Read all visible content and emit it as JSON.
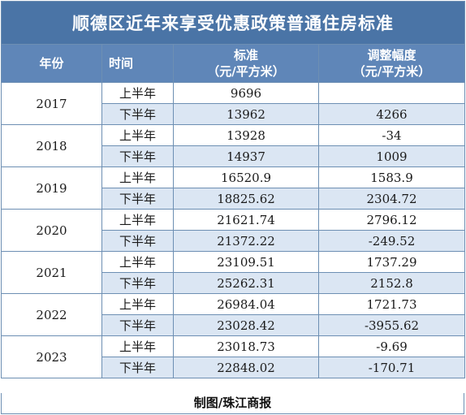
{
  "title": "顺德区近年来享受优惠政策普通住房标准",
  "headers": {
    "year": "年份",
    "time": "时间",
    "standard": "标准",
    "standard_unit": "（元/平方米）",
    "change": "调整幅度",
    "change_unit": "（元/平方米）"
  },
  "rows": [
    {
      "year": "2017",
      "h1": {
        "label": "上半年",
        "standard": "9696",
        "change": ""
      },
      "h2": {
        "label": "下半年",
        "standard": "13962",
        "change": "4266"
      }
    },
    {
      "year": "2018",
      "h1": {
        "label": "上半年",
        "standard": "13928",
        "change": "-34"
      },
      "h2": {
        "label": "下半年",
        "standard": "14937",
        "change": "1009"
      }
    },
    {
      "year": "2019",
      "h1": {
        "label": "上半年",
        "standard": "16520.9",
        "change": "1583.9"
      },
      "h2": {
        "label": "下半年",
        "standard": "18825.62",
        "change": "2304.72"
      }
    },
    {
      "year": "2020",
      "h1": {
        "label": "上半年",
        "standard": "21621.74",
        "change": "2796.12"
      },
      "h2": {
        "label": "下半年",
        "standard": "21372.22",
        "change": "-249.52"
      }
    },
    {
      "year": "2021",
      "h1": {
        "label": "上半年",
        "standard": "23109.51",
        "change": "1737.29"
      },
      "h2": {
        "label": "下半年",
        "standard": "25262.31",
        "change": "2152.8"
      }
    },
    {
      "year": "2022",
      "h1": {
        "label": "上半年",
        "standard": "26984.04",
        "change": "1721.73"
      },
      "h2": {
        "label": "下半年",
        "standard": "23028.42",
        "change": "-3955.62"
      }
    },
    {
      "year": "2023",
      "h1": {
        "label": "上半年",
        "standard": "23018.73",
        "change": "-9.69"
      },
      "h2": {
        "label": "下半年",
        "standard": "22848.02",
        "change": "-170.71"
      }
    }
  ],
  "footer": "制图/珠江商报",
  "colors": {
    "title_bg": "#4a74a6",
    "header_bg": "#5f86b8",
    "stripe": "#dbe6f3",
    "border": "#6d8fb3"
  }
}
